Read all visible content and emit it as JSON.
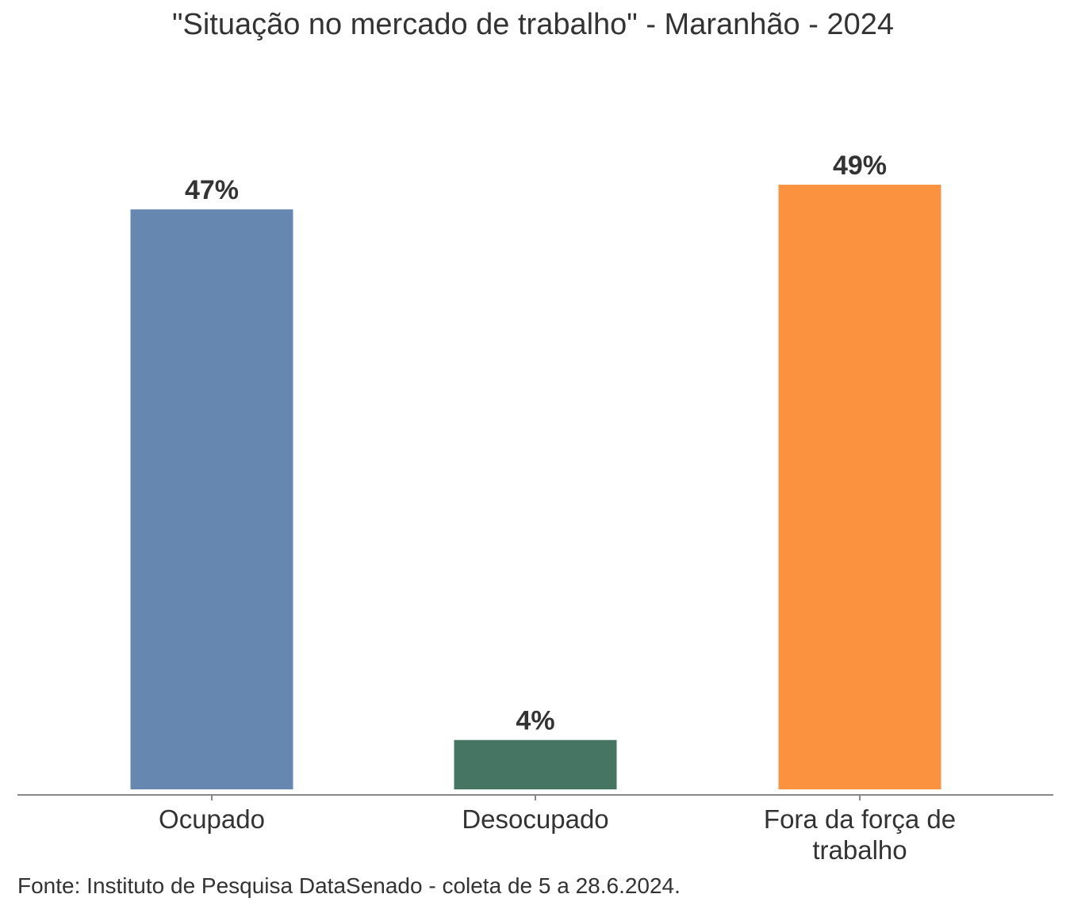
{
  "chart_data": {
    "type": "bar",
    "title": "\"Situação no mercado de trabalho\" - Maranhão - 2024",
    "categories": [
      "Ocupado",
      "Desocupado",
      "Fora da força de trabalho"
    ],
    "category_lines": [
      [
        "Ocupado"
      ],
      [
        "Desocupado"
      ],
      [
        "Fora da força de",
        "trabalho"
      ]
    ],
    "values": [
      47,
      4,
      49
    ],
    "labels": [
      "47%",
      "4%",
      "49%"
    ],
    "colors": [
      "#6688b0",
      "#467563",
      "#fb923f"
    ],
    "xlabel": "",
    "ylabel": "",
    "ylim": [
      0,
      50
    ],
    "grid": false,
    "source": "Fonte: Instituto de Pesquisa DataSenado - coleta de 5 a 28.6.2024."
  }
}
